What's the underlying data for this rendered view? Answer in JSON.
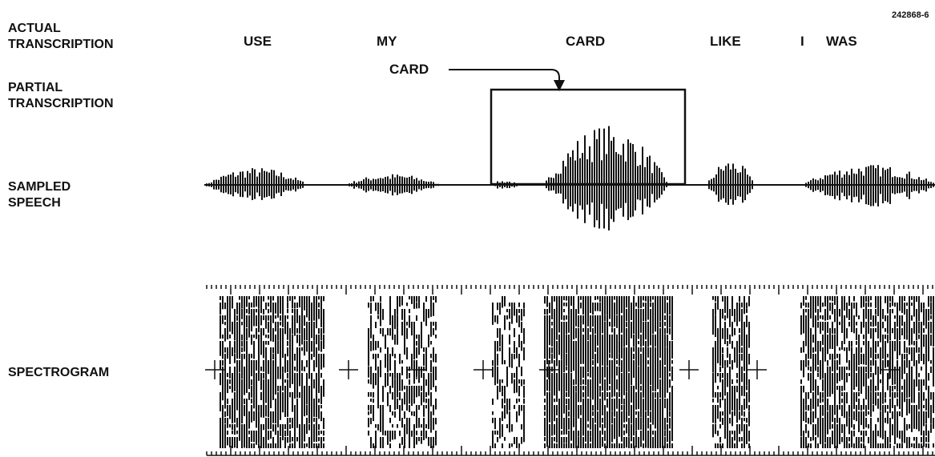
{
  "figure_id": "242868-6",
  "row_labels": {
    "actual": [
      "ACTUAL",
      "TRANSCRIPTION"
    ],
    "partial": [
      "PARTIAL",
      "TRANSCRIPTION"
    ],
    "sampled": [
      "SAMPLED",
      "SPEECH"
    ],
    "spectrogram": [
      "SPECTROGRAM"
    ]
  },
  "actual_words": [
    "USE",
    "MY",
    "CARD",
    "LIKE",
    "I",
    "WAS"
  ],
  "partial_word": "CARD"
}
